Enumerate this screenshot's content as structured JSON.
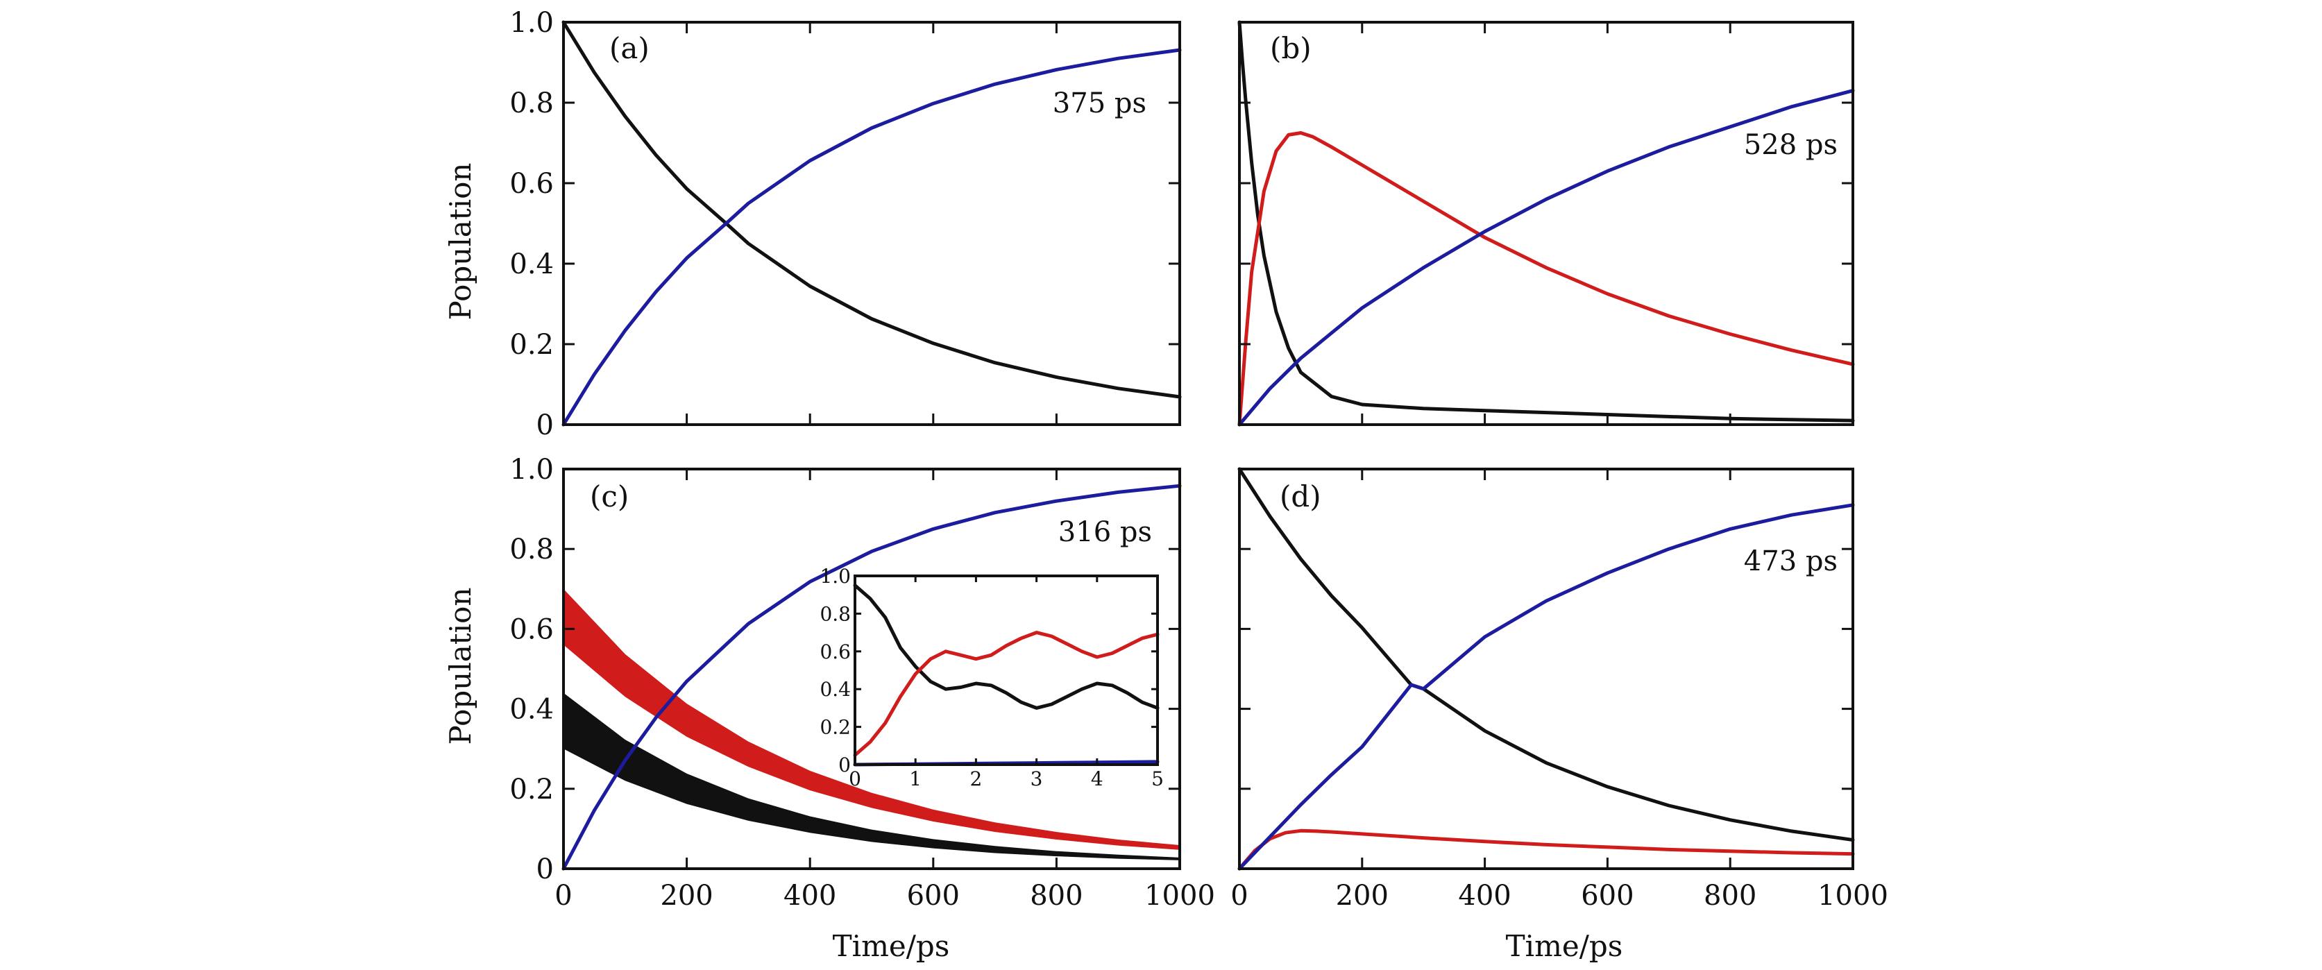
{
  "colors": {
    "black": "#111111",
    "blue": "#1c1c9e",
    "red": "#d11c1c"
  },
  "chart_data": [
    {
      "id": "a",
      "type": "line",
      "panel_label": "(a)",
      "annotation": "375 ps",
      "xlabel": "",
      "ylabel": "Population",
      "xlim": [
        0,
        1000
      ],
      "ylim": [
        0,
        1.0
      ],
      "x_ticks": [
        0,
        200,
        400,
        600,
        800,
        1000
      ],
      "y_ticks": [
        0,
        0.2,
        0.4,
        0.6,
        0.8,
        1.0
      ],
      "x_tick_labels": [],
      "y_tick_labels": [
        "0",
        "0.2",
        "0.4",
        "0.6",
        "0.8",
        "1.0"
      ],
      "series": [
        {
          "color": "black",
          "x": [
            0,
            50,
            100,
            150,
            200,
            264,
            300,
            400,
            500,
            600,
            700,
            800,
            900,
            1000
          ],
          "y": [
            1.0,
            0.875,
            0.766,
            0.67,
            0.586,
            0.5,
            0.45,
            0.344,
            0.263,
            0.202,
            0.154,
            0.118,
            0.09,
            0.069
          ]
        },
        {
          "color": "blue",
          "x": [
            0,
            50,
            100,
            150,
            200,
            264,
            300,
            400,
            500,
            600,
            700,
            800,
            900,
            1000
          ],
          "y": [
            0.0,
            0.125,
            0.234,
            0.33,
            0.414,
            0.5,
            0.55,
            0.656,
            0.737,
            0.798,
            0.846,
            0.882,
            0.91,
            0.931
          ]
        }
      ]
    },
    {
      "id": "b",
      "type": "line",
      "panel_label": "(b)",
      "annotation": "528 ps",
      "xlabel": "",
      "ylabel": "",
      "xlim": [
        0,
        1000
      ],
      "ylim": [
        0,
        1.0
      ],
      "x_ticks": [
        0,
        200,
        400,
        600,
        800,
        1000
      ],
      "y_ticks": [
        0,
        0.2,
        0.4,
        0.6,
        0.8,
        1.0
      ],
      "x_tick_labels": [],
      "y_tick_labels": [],
      "series": [
        {
          "color": "black",
          "x": [
            0,
            5,
            10,
            20,
            30,
            40,
            60,
            80,
            100,
            150,
            200,
            300,
            400,
            600,
            800,
            1000
          ],
          "y": [
            1.0,
            0.9,
            0.81,
            0.65,
            0.52,
            0.42,
            0.28,
            0.19,
            0.13,
            0.07,
            0.05,
            0.04,
            0.035,
            0.025,
            0.015,
            0.01
          ]
        },
        {
          "color": "red",
          "x": [
            0,
            10,
            20,
            40,
            60,
            80,
            100,
            120,
            150,
            200,
            300,
            400,
            500,
            600,
            700,
            800,
            900,
            1000
          ],
          "y": [
            0.0,
            0.2,
            0.38,
            0.58,
            0.68,
            0.72,
            0.725,
            0.715,
            0.69,
            0.645,
            0.555,
            0.465,
            0.39,
            0.325,
            0.27,
            0.225,
            0.185,
            0.15
          ]
        },
        {
          "color": "blue",
          "x": [
            0,
            50,
            100,
            200,
            300,
            400,
            500,
            600,
            700,
            800,
            900,
            1000
          ],
          "y": [
            0.0,
            0.09,
            0.165,
            0.29,
            0.39,
            0.48,
            0.56,
            0.63,
            0.69,
            0.74,
            0.79,
            0.83
          ]
        }
      ]
    },
    {
      "id": "c",
      "type": "line",
      "panel_label": "(c)",
      "annotation": "316 ps",
      "xlabel": "Time/ps",
      "ylabel": "Population",
      "xlim": [
        0,
        1000
      ],
      "ylim": [
        0,
        1.0
      ],
      "x_ticks": [
        0,
        200,
        400,
        600,
        800,
        1000
      ],
      "y_ticks": [
        0,
        0.2,
        0.4,
        0.6,
        0.8,
        1.0
      ],
      "x_tick_labels": [
        "0",
        "200",
        "400",
        "600",
        "800",
        "1000"
      ],
      "y_tick_labels": [
        "0",
        "0.2",
        "0.4",
        "0.6",
        "0.8",
        "1.0"
      ],
      "bands": [
        {
          "color": "red",
          "x": [
            0,
            100,
            200,
            300,
            400,
            500,
            600,
            700,
            800,
            900,
            1000
          ],
          "upper": [
            0.7,
            0.537,
            0.413,
            0.318,
            0.245,
            0.19,
            0.148,
            0.116,
            0.092,
            0.073,
            0.059
          ],
          "lower": [
            0.56,
            0.43,
            0.33,
            0.255,
            0.196,
            0.152,
            0.118,
            0.092,
            0.073,
            0.058,
            0.047
          ]
        },
        {
          "color": "black",
          "x": [
            0,
            100,
            200,
            300,
            400,
            500,
            600,
            700,
            800,
            900,
            1000
          ],
          "upper": [
            0.44,
            0.323,
            0.238,
            0.176,
            0.131,
            0.098,
            0.074,
            0.057,
            0.044,
            0.035,
            0.028
          ],
          "lower": [
            0.3,
            0.22,
            0.162,
            0.12,
            0.09,
            0.067,
            0.051,
            0.039,
            0.031,
            0.025,
            0.021
          ]
        }
      ],
      "series": [
        {
          "color": "blue",
          "x": [
            0,
            50,
            100,
            150,
            200,
            300,
            400,
            500,
            600,
            700,
            800,
            900,
            1000
          ],
          "y": [
            0.0,
            0.146,
            0.271,
            0.378,
            0.469,
            0.613,
            0.718,
            0.794,
            0.85,
            0.891,
            0.92,
            0.942,
            0.958
          ]
        }
      ],
      "inset": {
        "type": "line",
        "xlim": [
          0,
          5
        ],
        "ylim": [
          0,
          1.0
        ],
        "x_ticks": [
          0,
          1,
          2,
          3,
          4,
          5
        ],
        "y_ticks": [
          0,
          0.2,
          0.4,
          0.6,
          0.8,
          1.0
        ],
        "x_tick_labels": [
          "0",
          "1",
          "2",
          "3",
          "4",
          "5"
        ],
        "y_tick_labels": [
          "0",
          "0.2",
          "0.4",
          "0.6",
          "0.8",
          "1.0"
        ],
        "series": [
          {
            "color": "black",
            "x": [
              0,
              0.25,
              0.5,
              0.75,
              1.0,
              1.25,
              1.5,
              1.75,
              2.0,
              2.25,
              2.5,
              2.75,
              3.0,
              3.25,
              3.5,
              3.75,
              4.0,
              4.25,
              4.5,
              4.75,
              5.0
            ],
            "y": [
              0.95,
              0.88,
              0.78,
              0.62,
              0.52,
              0.44,
              0.4,
              0.41,
              0.43,
              0.42,
              0.38,
              0.33,
              0.3,
              0.32,
              0.36,
              0.4,
              0.43,
              0.42,
              0.38,
              0.33,
              0.3
            ]
          },
          {
            "color": "red",
            "x": [
              0,
              0.25,
              0.5,
              0.75,
              1.0,
              1.25,
              1.5,
              1.75,
              2.0,
              2.25,
              2.5,
              2.75,
              3.0,
              3.25,
              3.5,
              3.75,
              4.0,
              4.25,
              4.5,
              4.75,
              5.0
            ],
            "y": [
              0.05,
              0.12,
              0.22,
              0.36,
              0.48,
              0.56,
              0.6,
              0.58,
              0.56,
              0.58,
              0.63,
              0.67,
              0.7,
              0.68,
              0.64,
              0.6,
              0.57,
              0.59,
              0.63,
              0.67,
              0.69
            ]
          },
          {
            "color": "blue",
            "x": [
              0,
              1,
              2,
              3,
              4,
              5
            ],
            "y": [
              0.0,
              0.003,
              0.006,
              0.009,
              0.012,
              0.015
            ]
          }
        ]
      }
    },
    {
      "id": "d",
      "type": "line",
      "panel_label": "(d)",
      "annotation": "473 ps",
      "xlabel": "Time/ps",
      "ylabel": "",
      "xlim": [
        0,
        1000
      ],
      "ylim": [
        0,
        1.0
      ],
      "x_ticks": [
        0,
        200,
        400,
        600,
        800,
        1000
      ],
      "y_ticks": [
        0,
        0.2,
        0.4,
        0.6,
        0.8,
        1.0
      ],
      "x_tick_labels": [
        "0",
        "200",
        "400",
        "600",
        "800",
        "1000"
      ],
      "y_tick_labels": [],
      "series": [
        {
          "color": "black",
          "x": [
            0,
            50,
            100,
            150,
            200,
            280,
            300,
            400,
            500,
            600,
            700,
            800,
            900,
            1000
          ],
          "y": [
            1.0,
            0.881,
            0.775,
            0.683,
            0.603,
            0.46,
            0.45,
            0.345,
            0.265,
            0.205,
            0.158,
            0.122,
            0.094,
            0.072
          ]
        },
        {
          "color": "red",
          "x": [
            0,
            25,
            50,
            75,
            100,
            125,
            150,
            200,
            300,
            400,
            500,
            600,
            700,
            800,
            900,
            1000
          ],
          "y": [
            0.0,
            0.045,
            0.075,
            0.09,
            0.095,
            0.094,
            0.092,
            0.087,
            0.077,
            0.068,
            0.06,
            0.054,
            0.048,
            0.044,
            0.04,
            0.037
          ]
        },
        {
          "color": "blue",
          "x": [
            0,
            50,
            100,
            150,
            200,
            280,
            300,
            400,
            500,
            600,
            700,
            800,
            900,
            1000
          ],
          "y": [
            0.0,
            0.08,
            0.16,
            0.235,
            0.305,
            0.46,
            0.45,
            0.58,
            0.67,
            0.74,
            0.8,
            0.85,
            0.885,
            0.91
          ]
        }
      ]
    }
  ]
}
